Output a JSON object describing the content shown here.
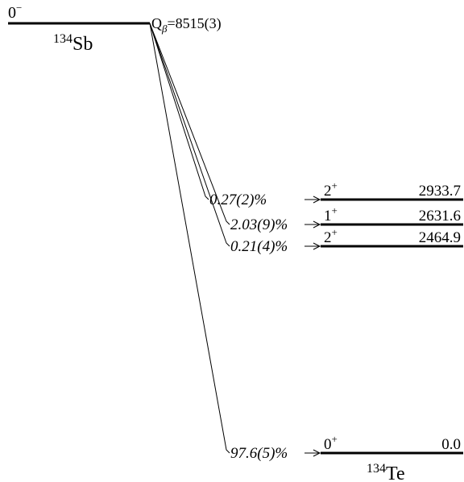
{
  "parent": {
    "spin": "0",
    "spin_sup": "−",
    "mass": "134",
    "element": "Sb",
    "q_label": "Q",
    "q_sub": "β",
    "q_value": "=8515(3)"
  },
  "daughter": {
    "mass": "134",
    "element": "Te"
  },
  "levels": [
    {
      "spin": "2",
      "parity": "+",
      "energy": "2933.7",
      "branch": "0.27(2)%"
    },
    {
      "spin": "1",
      "parity": "+",
      "energy": "2631.6",
      "branch": "2.03(9)%"
    },
    {
      "spin": "2",
      "parity": "+",
      "energy": "2464.9",
      "branch": "0.21(4)%"
    },
    {
      "spin": "0",
      "parity": "+",
      "energy": "0.0",
      "branch": "97.6(5)%"
    }
  ]
}
